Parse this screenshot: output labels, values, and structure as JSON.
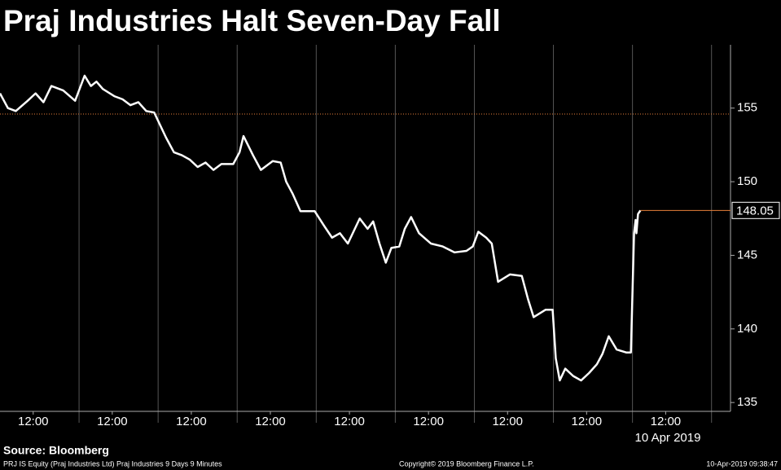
{
  "chart_data": {
    "type": "line",
    "title": "Praj Industries Halt Seven-Day Fall",
    "source": "Source: Bloomberg",
    "footer_left": "PRJ IS Equity (Praj Industries Ltd) Praj Industries 9 Days 9 Minutes",
    "footer_center": "Copyright© 2019 Bloomberg Finance L.P.",
    "footer_right": "10-Apr-2019 09:38:47",
    "date_label": "10 Apr 2019",
    "x": [
      0,
      0.1,
      0.2,
      0.35,
      0.45,
      0.55,
      0.65,
      0.8,
      0.95,
      1.07,
      1.15,
      1.22,
      1.3,
      1.45,
      1.55,
      1.65,
      1.75,
      1.85,
      1.95,
      2.1,
      2.2,
      2.3,
      2.4,
      2.5,
      2.6,
      2.7,
      2.8,
      2.95,
      3.03,
      3.08,
      3.2,
      3.3,
      3.45,
      3.55,
      3.62,
      3.7,
      3.8,
      3.98,
      4.1,
      4.2,
      4.3,
      4.4,
      4.55,
      4.65,
      4.72,
      4.8,
      4.88,
      4.95,
      5.05,
      5.12,
      5.2,
      5.3,
      5.45,
      5.6,
      5.75,
      5.9,
      5.98,
      6.05,
      6.15,
      6.22,
      6.3,
      6.45,
      6.6,
      6.68,
      6.75,
      6.9,
      6.99,
      7.03,
      7.08,
      7.15,
      7.25,
      7.35,
      7.45,
      7.55,
      7.62,
      7.7,
      7.8,
      7.92,
      7.98,
      8.02,
      8.04,
      8.05,
      8.07,
      8.1
    ],
    "series": [
      {
        "name": "PRJ IS Equity",
        "color": "#ffffff",
        "values": [
          156,
          155,
          154.8,
          155.5,
          156,
          155.4,
          156.5,
          156.2,
          155.5,
          157.2,
          156.5,
          156.8,
          156.3,
          155.8,
          155.6,
          155.2,
          155.4,
          154.8,
          154.7,
          153,
          152,
          151.8,
          151.5,
          151,
          151.3,
          150.8,
          151.2,
          151.2,
          152,
          153.1,
          151.8,
          150.8,
          151.4,
          151.3,
          150,
          149.2,
          148,
          148,
          147,
          146.2,
          146.5,
          145.8,
          147.5,
          146.8,
          147.3,
          145.8,
          144.5,
          145.5,
          145.6,
          146.8,
          147.6,
          146.5,
          145.8,
          145.6,
          145.2,
          145.3,
          145.6,
          146.6,
          146.2,
          145.8,
          143.2,
          143.7,
          143.6,
          142,
          140.8,
          141.3,
          141.3,
          138,
          136.5,
          137.3,
          136.8,
          136.5,
          137,
          137.6,
          138.3,
          139.5,
          138.6,
          138.4,
          138.4,
          146.5,
          147.4,
          146.5,
          147.8,
          148.05
        ]
      }
    ],
    "last_value": 148.05,
    "reference_value": 154.6,
    "reference_color": "#e8803a",
    "xlim": [
      0,
      9.24
    ],
    "xticks": [
      {
        "value": 0.42,
        "label": "12:00"
      },
      {
        "value": 1.42,
        "label": "12:00"
      },
      {
        "value": 2.42,
        "label": "12:00"
      },
      {
        "value": 3.42,
        "label": "12:00"
      },
      {
        "value": 4.42,
        "label": "12:00"
      },
      {
        "value": 5.42,
        "label": "12:00"
      },
      {
        "value": 6.42,
        "label": "12:00"
      },
      {
        "value": 7.42,
        "label": "12:00"
      },
      {
        "value": 8.42,
        "label": "12:00"
      }
    ],
    "ylim": [
      134.4,
      159.3
    ],
    "yticks": [
      135,
      140,
      145,
      150,
      155
    ]
  }
}
